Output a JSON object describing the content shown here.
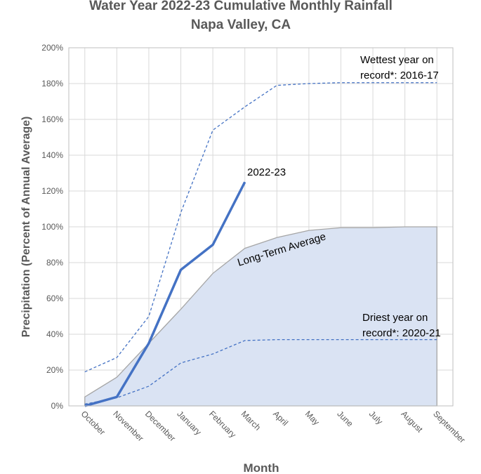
{
  "chart_data": {
    "type": "line",
    "title": "Water Year 2022-23 Cumulative Monthly Rainfall",
    "subtitle": "Napa Valley, CA",
    "x_label": "Month",
    "y_label": "Precipitation (Percent of Annual Average)",
    "categories": [
      "October",
      "November",
      "December",
      "January",
      "February",
      "March",
      "April",
      "May",
      "June",
      "July",
      "August",
      "September"
    ],
    "series": [
      {
        "name": "Long-Term Average",
        "color": "#a6a6a6",
        "fill": "#dae3f3",
        "area": true,
        "dashed": false,
        "values": [
          5,
          16,
          35,
          54,
          74,
          88,
          94,
          98,
          99.5,
          99.5,
          100,
          100
        ]
      },
      {
        "name": "2022-23",
        "color": "#4472c4",
        "area": false,
        "dashed": false,
        "values": [
          0,
          5,
          35,
          76,
          90,
          125,
          null,
          null,
          null,
          null,
          null,
          null
        ]
      },
      {
        "name": "Wettest year on record*: 2016-17",
        "color": "#4472c4",
        "area": false,
        "dashed": true,
        "values": [
          19,
          27,
          50,
          108,
          154,
          167,
          179,
          180,
          180.5,
          180.5,
          180.5,
          180.5
        ]
      },
      {
        "name": "Driest year on record*: 2020-21",
        "color": "#4472c4",
        "area": false,
        "dashed": true,
        "values": [
          1,
          4.5,
          11,
          24,
          29,
          36.5,
          37,
          37,
          37,
          37,
          37,
          37
        ]
      }
    ],
    "annotations": [
      {
        "lines": [
          "Wettest year on",
          "record*: 2016-17"
        ]
      },
      {
        "lines": [
          "2022-23"
        ]
      },
      {
        "lines": [
          "Long-Term Average"
        ]
      },
      {
        "lines": [
          "Driest year on",
          "record*: 2020-21"
        ]
      }
    ],
    "ylim": [
      0,
      200
    ],
    "yticks": [
      {
        "value": 0,
        "label": "0%"
      },
      {
        "value": 20,
        "label": "20%"
      },
      {
        "value": 40,
        "label": "40%"
      },
      {
        "value": 60,
        "label": "60%"
      },
      {
        "value": 80,
        "label": "80%"
      },
      {
        "value": 100,
        "label": "100%"
      },
      {
        "value": 120,
        "label": "120%"
      },
      {
        "value": 140,
        "label": "140%"
      },
      {
        "value": 160,
        "label": "160%"
      },
      {
        "value": 180,
        "label": "180%"
      },
      {
        "value": 200,
        "label": "200%"
      }
    ],
    "grid": true
  }
}
